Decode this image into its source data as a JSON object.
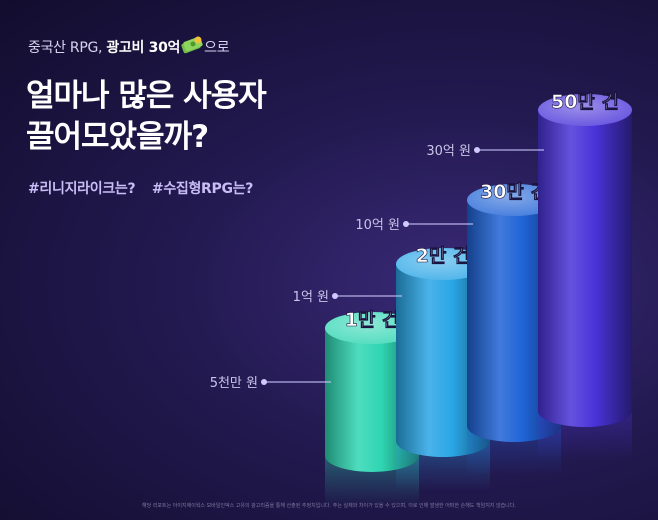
{
  "header": {
    "subtitle_prefix": "중국산 RPG,",
    "subtitle_emphasis": "광고비 30억",
    "subtitle_suffix": "으로",
    "title_line1": "얼마나 많은 사용자",
    "title_line2": "끌어모았을까?",
    "tag1": "#리니지라이크는?",
    "tag2": "#수집형RPG는?"
  },
  "icons": {
    "subtitle_icon": "money-bill-icon"
  },
  "colors": {
    "background": "#1b1540",
    "bar_colors": [
      "#2fd6b3",
      "#2aa6e6",
      "#1f63d6",
      "#4a33d9"
    ],
    "label_text": "#c9c4ea",
    "dot": "#cfc9ff"
  },
  "chart_data": {
    "type": "bar",
    "style": "3d-cylinder",
    "categories": [
      "5천만 원",
      "1억 원",
      "10억 원",
      "30억 원"
    ],
    "value_labels": [
      "1만 건",
      "2만 건",
      "30만 건",
      "50만 건"
    ],
    "values": [
      10000,
      20000,
      300000,
      500000
    ],
    "unit": "건",
    "title": "얼마나 많은 사용자 끌어모았을까?",
    "legend": "none",
    "grid": false
  },
  "footnote": "해당 리포트는 아이지에이웍스 모바일인덱스 고유의 광고리즘을 통해 산출된 추정치입니다. 주는 실제와 차이가 있을 수 있으며, 이로 인해 발생한 어떠한 손해도 책임지지 않습니다."
}
